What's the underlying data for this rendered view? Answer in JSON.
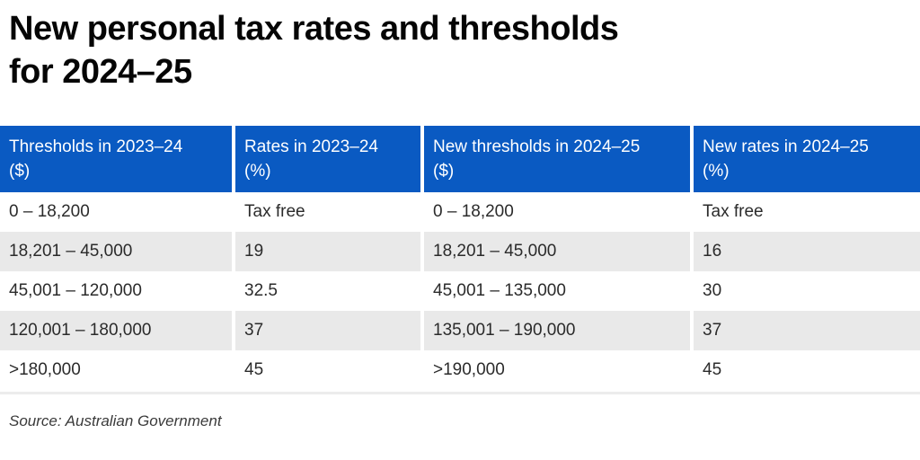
{
  "page_title": "New personal tax rates and thresholds\nfor 2024–25",
  "chart_data": {
    "type": "table",
    "title": "New personal tax rates and thresholds for 2024–25",
    "columns": [
      {
        "label": "Thresholds in 2023–24",
        "unit": "($)"
      },
      {
        "label": "Rates in 2023–24",
        "unit": "(%)"
      },
      {
        "label": "New thresholds in 2024–25",
        "unit": "($)"
      },
      {
        "label": "New rates in 2024–25",
        "unit": "(%)"
      }
    ],
    "rows": [
      [
        "0 – 18,200",
        "Tax free",
        "0 – 18,200",
        "Tax free"
      ],
      [
        "18,201 – 45,000",
        "19",
        "18,201 – 45,000",
        "16"
      ],
      [
        "45,001 – 120,000",
        "32.5",
        "45,001 – 135,000",
        "30"
      ],
      [
        "120,001 – 180,000",
        "37",
        "135,001 – 190,000",
        "37"
      ],
      [
        ">180,000",
        "45",
        ">190,000",
        "45"
      ]
    ],
    "source": "Source: Australian Government",
    "layout_hints": {
      "header_background": "#0a5ac2",
      "alternate_row_background": "#e9e9e9",
      "header_text_color": "#ffffff",
      "body_text_color": "#2b2b2b"
    }
  },
  "colors": {
    "header_blue": "#0a5ac2",
    "row_gray": "#e9e9e9",
    "title_black": "#050505",
    "rule_gray": "#ececec"
  }
}
